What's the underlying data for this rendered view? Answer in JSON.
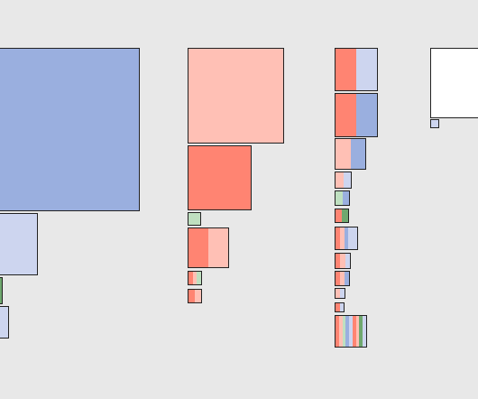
{
  "colors": {
    "background": "#e8e8e8",
    "border": "#222222",
    "blue": "#9aafdf",
    "light_blue": "#cdd5ef",
    "salmon": "#ff8472",
    "light_salmon": "#ffc0b5",
    "light_green": "#bfe0c0",
    "green": "#6fa86f",
    "white": "#ffffff"
  },
  "columns": [
    {
      "name": "column-1",
      "boxes": [
        {
          "fill": [
            "blue"
          ]
        },
        {
          "fill": [
            "light_blue"
          ]
        },
        {
          "fill": [
            "green"
          ]
        },
        {
          "fill": [
            "light_blue"
          ]
        }
      ]
    },
    {
      "name": "column-2",
      "boxes": [
        {
          "fill": [
            "light_salmon"
          ]
        },
        {
          "fill": [
            "salmon"
          ]
        },
        {
          "fill": [
            "light_green"
          ]
        },
        {
          "fill": [
            "salmon",
            "light_salmon"
          ]
        },
        {
          "fill": [
            "salmon",
            "light_salmon",
            "light_green"
          ]
        },
        {
          "fill": [
            "salmon",
            "light_salmon"
          ]
        }
      ]
    },
    {
      "name": "column-3",
      "boxes": [
        {
          "fill": [
            "salmon",
            "light_blue"
          ]
        },
        {
          "fill": [
            "salmon",
            "blue"
          ]
        },
        {
          "fill": [
            "light_salmon",
            "blue"
          ]
        },
        {
          "fill": [
            "light_salmon",
            "light_blue"
          ]
        },
        {
          "fill": [
            "light_green",
            "blue"
          ]
        },
        {
          "fill": [
            "salmon",
            "green"
          ]
        },
        {
          "fill": [
            "salmon",
            "light_salmon",
            "blue",
            "light_blue"
          ]
        },
        {
          "fill": [
            "salmon",
            "light_salmon",
            "light_blue"
          ]
        },
        {
          "fill": [
            "salmon",
            "light_salmon",
            "blue"
          ]
        },
        {
          "fill": [
            "light_salmon",
            "light_blue"
          ]
        },
        {
          "fill": [
            "salmon",
            "light_blue"
          ]
        },
        {
          "fill": [
            "salmon",
            "light_salmon",
            "light_green",
            "blue",
            "light_blue",
            "salmon",
            "light_salmon",
            "green",
            "light_blue"
          ]
        }
      ]
    },
    {
      "name": "column-4",
      "boxes": [
        {
          "fill": [
            "white"
          ]
        },
        {
          "fill": [
            "light_blue"
          ]
        }
      ]
    }
  ]
}
